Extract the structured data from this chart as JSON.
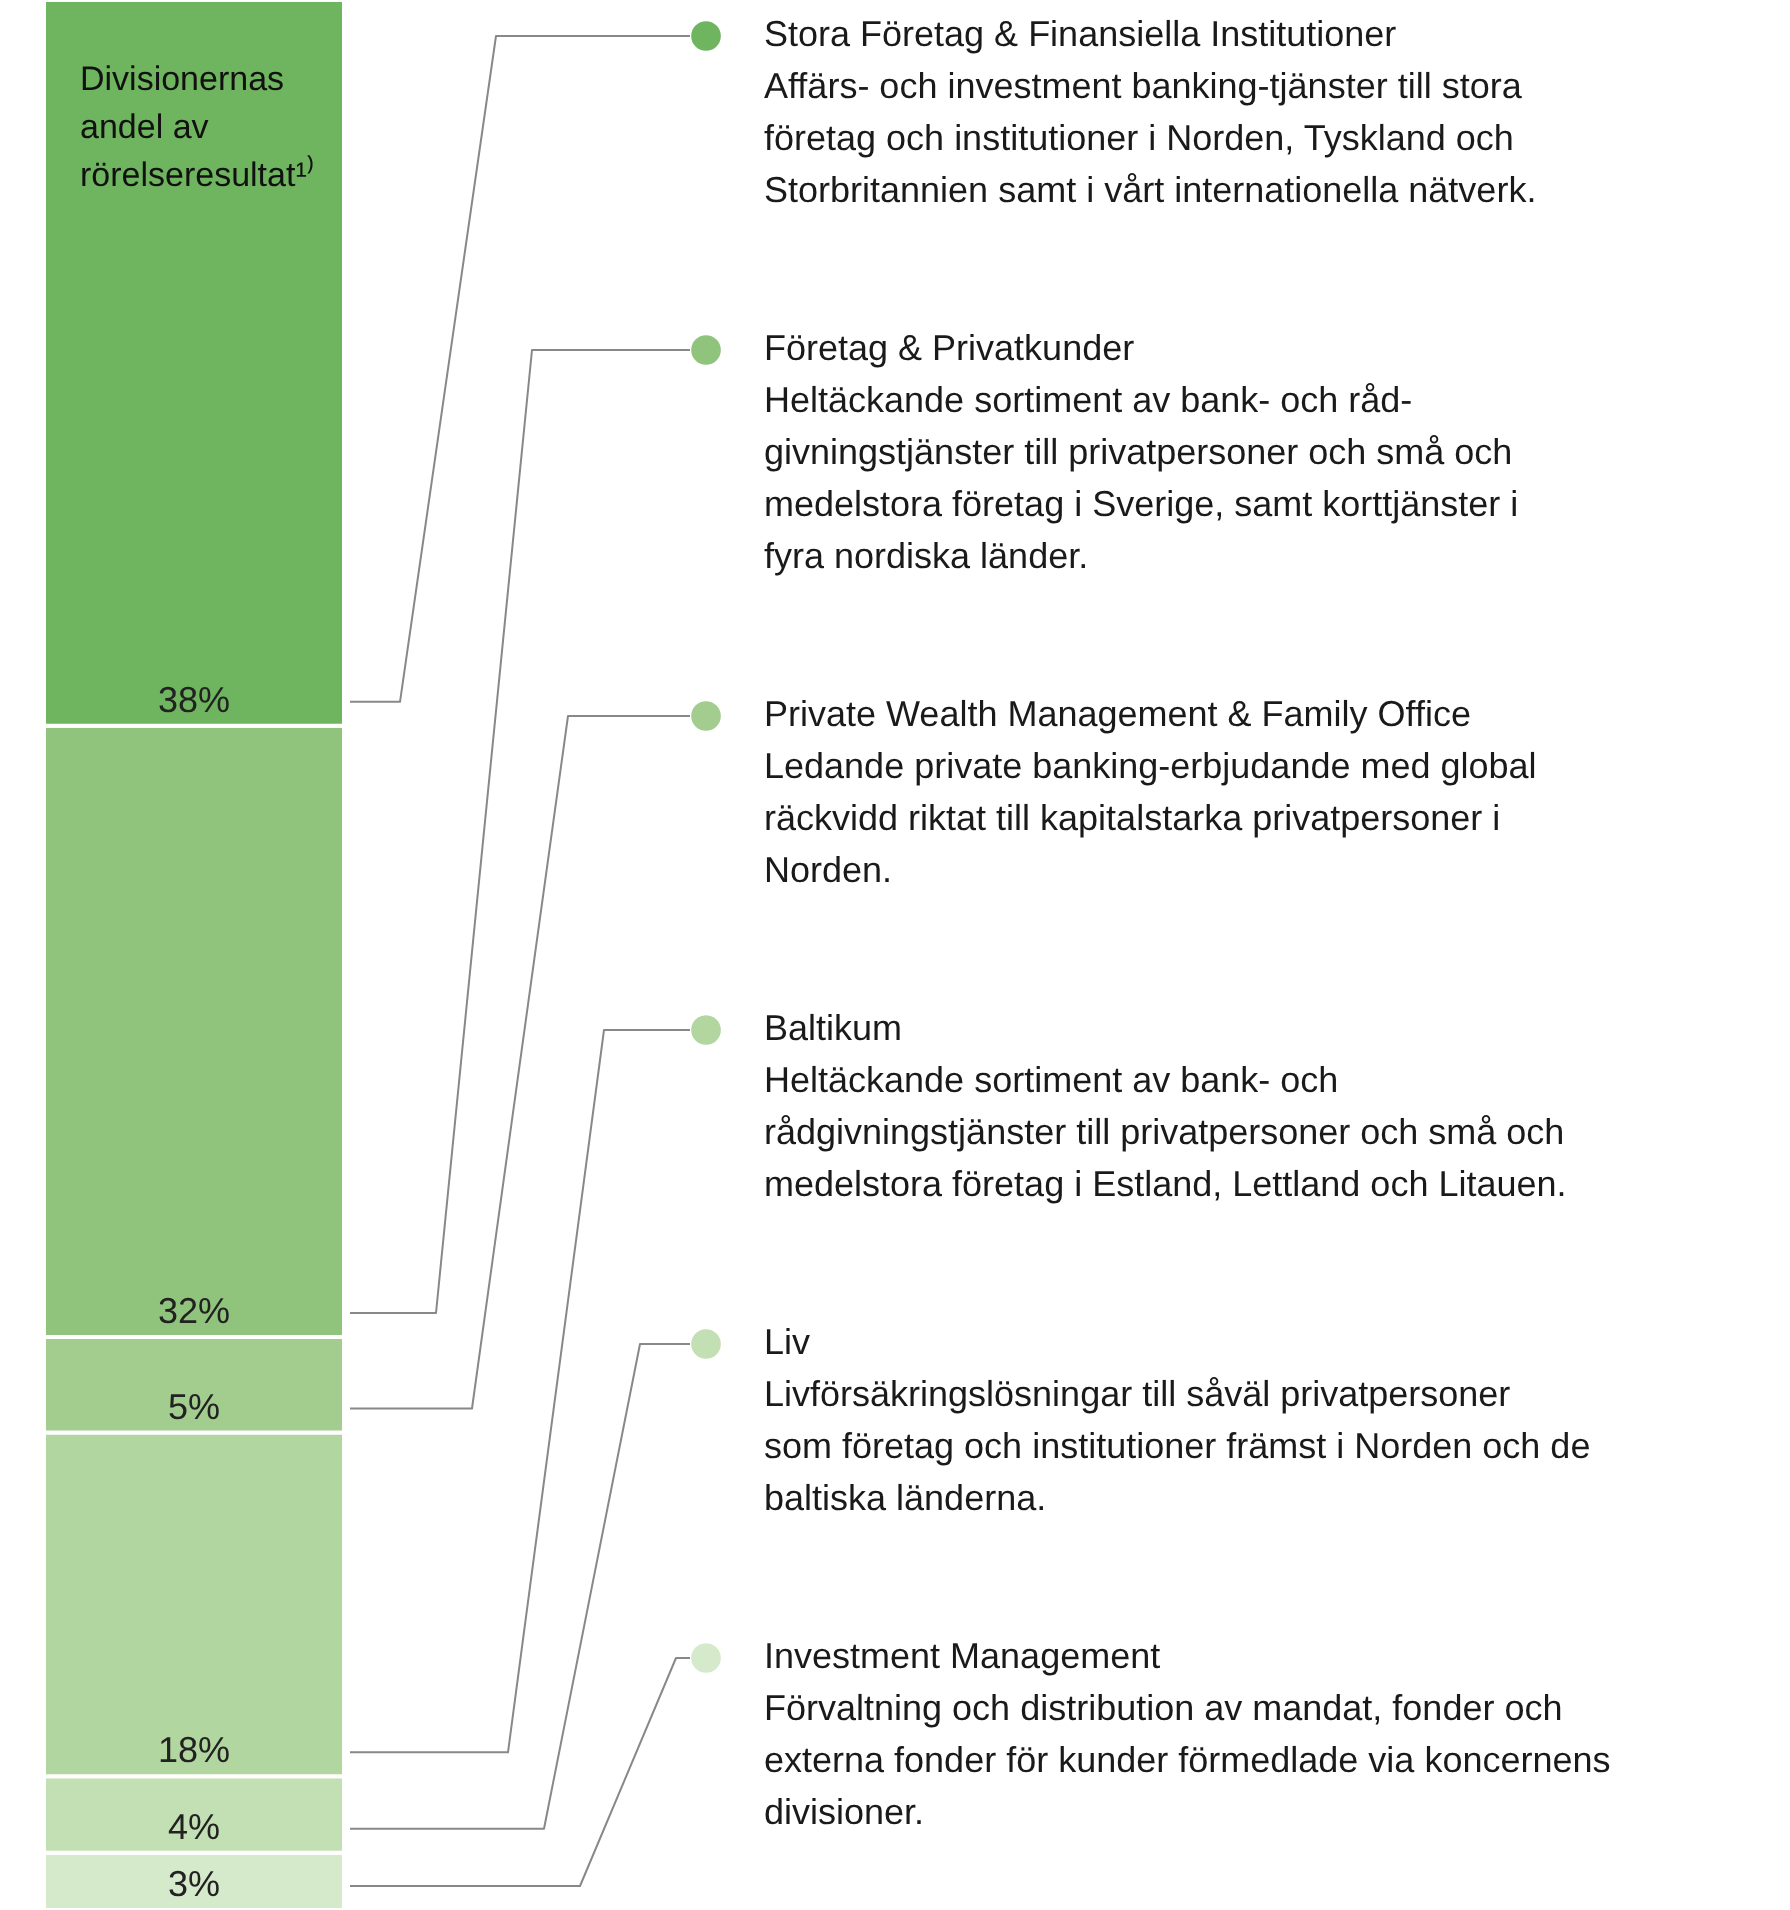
{
  "chart_data": {
    "type": "bar",
    "stacked": true,
    "legend": "right",
    "title": "Divisionernas andel av rörelseresultat¹⁾",
    "categories": [
      null
    ],
    "series": [
      {
        "name": "Investment Management",
        "color": "#d5eacb",
        "values": [
          3
        ],
        "value_labels": [
          "3%"
        ]
      },
      {
        "name": "Liv",
        "color": "#c3e0b4",
        "values": [
          4
        ],
        "value_labels": [
          "4%"
        ]
      },
      {
        "name": "Baltikum",
        "color": "#b2d6a0",
        "values": [
          18
        ],
        "value_labels": [
          "18%"
        ]
      },
      {
        "name": "Private Wealth Management & Family Office",
        "color": "#a2cd8f",
        "values": [
          5
        ],
        "value_labels": [
          "5%"
        ]
      },
      {
        "name": "Företag & Privatkunder",
        "color": "#90c47c",
        "values": [
          32
        ],
        "value_labels": [
          "32%"
        ]
      },
      {
        "name": "Stora Företag & Finansiella Institutioner",
        "color": "#6fb45e",
        "values": [
          38
        ],
        "value_labels": [
          "38%"
        ]
      }
    ],
    "annotations": [
      "Affärs- och investment banking-tjänster till stora företag och institutioner i Norden, Tyskland och Storbritannien samt i vårt internationella nätverk.",
      "Heltäckande sortiment av bank- och råd-givningstjänster till privatpersoner och små och medelstora företag i Sverige, samt korttjänster i fyra nordiska länder.",
      "Ledande private banking-erbjudande med global räckvidd riktat till kapitalstarka privatpersoner i Norden.",
      "Heltäckande sortiment av bank- och rådgivningstjänster till privatpersoner och små och medelstora företag i Estland, Lettland och Litauen.",
      "Livförsäkringslösningar till såväl privatpersoner som företag och institutioner främst i Norden och de baltiska länderna.",
      "Förvaltning och distribution av mandat, fonder och externa fonder för kunder förmedlade via koncernens divisioner."
    ]
  }
}
